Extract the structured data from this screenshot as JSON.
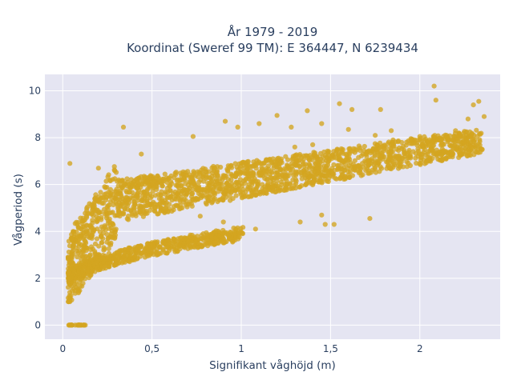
{
  "chart_data": {
    "type": "scatter",
    "title_lines": [
      "År 1979 - 2019",
      "Koordinat (Sweref 99 TM): E 364447, N 6239434"
    ],
    "xlabel": "Signifikant våghöjd (m)",
    "ylabel": "Vågperiod (s)",
    "xlim": [
      -0.1,
      2.45
    ],
    "ylim": [
      -0.6,
      10.7
    ],
    "xticks": [
      {
        "value": 0,
        "label": "0"
      },
      {
        "value": 0.5,
        "label": "0,5"
      },
      {
        "value": 1,
        "label": "1"
      },
      {
        "value": 1.5,
        "label": "1,5"
      },
      {
        "value": 2,
        "label": "2"
      }
    ],
    "yticks": [
      {
        "value": 0,
        "label": "0"
      },
      {
        "value": 2,
        "label": "2"
      },
      {
        "value": 4,
        "label": "4"
      },
      {
        "value": 6,
        "label": "6"
      },
      {
        "value": 8,
        "label": "8"
      },
      {
        "value": 10,
        "label": "10"
      }
    ],
    "grid": true,
    "marker_color": "#d4a520",
    "plot_background": "#e5e5f2",
    "point_clusters": [
      {
        "name": "main",
        "x_range": [
          0.03,
          2.35
        ],
        "y_band": "upper dense cloud"
      },
      {
        "name": "lower",
        "x_range": [
          0.03,
          1.0
        ],
        "y_band": "lower branch"
      },
      {
        "name": "zero",
        "x_range": [
          0.03,
          0.13
        ],
        "y": 0
      }
    ],
    "points": [
      [
        0.34,
        8.45
      ],
      [
        2.08,
        10.2
      ],
      [
        2.09,
        9.6
      ],
      [
        1.84,
        8.3
      ],
      [
        1.78,
        9.2
      ],
      [
        1.55,
        9.45
      ],
      [
        1.37,
        9.15
      ],
      [
        1.72,
        4.55
      ],
      [
        1.47,
        4.3
      ],
      [
        1.52,
        4.3
      ],
      [
        1.45,
        4.7
      ],
      [
        1.33,
        4.4
      ],
      [
        1.2,
        8.95
      ],
      [
        2.33,
        9.55
      ],
      [
        2.3,
        9.4
      ],
      [
        2.36,
        8.9
      ],
      [
        1.62,
        9.2
      ],
      [
        1.85,
        7.9
      ],
      [
        2.0,
        8.05
      ],
      [
        1.95,
        7.9
      ],
      [
        0.04,
        6.9
      ],
      [
        0.03,
        2.9
      ],
      [
        0.2,
        6.7
      ],
      [
        0.44,
        7.3
      ],
      [
        0.73,
        8.05
      ],
      [
        0.98,
        8.45
      ],
      [
        1.1,
        8.6
      ],
      [
        1.28,
        8.45
      ],
      [
        1.45,
        8.6
      ],
      [
        1.6,
        8.35
      ],
      [
        1.4,
        7.7
      ],
      [
        1.75,
        8.1
      ],
      [
        2.2,
        8.3
      ],
      [
        2.27,
        8.8
      ],
      [
        0.91,
        8.7
      ],
      [
        1.3,
        7.6
      ],
      [
        1.08,
        4.1
      ],
      [
        0.9,
        4.4
      ],
      [
        0.77,
        4.65
      ],
      [
        0.99,
        3.95
      ]
    ]
  }
}
